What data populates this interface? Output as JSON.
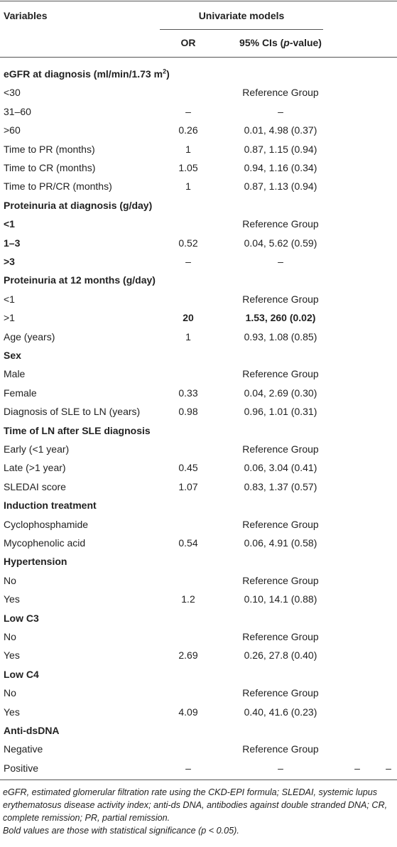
{
  "table": {
    "header": {
      "variables": "Variables",
      "group": "Univariate models",
      "or": "OR",
      "ci": [
        "95% CIs (",
        "p",
        "-value)"
      ]
    },
    "rows": [
      {
        "label": "eGFR at diagnosis (ml/min/1.73 m",
        "label_sup": "2",
        "label_end": ")",
        "bold": "all"
      },
      {
        "label": "<30",
        "ci": "Reference Group"
      },
      {
        "label": "31–60",
        "or": "–",
        "ci": "–"
      },
      {
        "label": ">60",
        "or": "0.26",
        "ci": "0.01, 4.98 (0.37)"
      },
      {
        "label": "Time to PR (months)",
        "or": "1",
        "ci": "0.87, 1.15 (0.94)"
      },
      {
        "label": "Time to CR (months)",
        "or": "1.05",
        "ci": "0.94, 1.16 (0.34)"
      },
      {
        "label": "Time to PR/CR (months)",
        "or": "1",
        "ci": "0.87, 1.13 (0.94)"
      },
      {
        "label": "Proteinuria at diagnosis (g/day)",
        "bold": "all"
      },
      {
        "label": "<1",
        "ci": "Reference Group",
        "bold": "label"
      },
      {
        "label": "1–3",
        "or": "0.52",
        "ci": "0.04, 5.62 (0.59)",
        "bold": "label"
      },
      {
        "label": ">3",
        "or": "–",
        "ci": "–",
        "bold": "label"
      },
      {
        "label": "Proteinuria at 12 months (g/day)",
        "bold": "all"
      },
      {
        "label": "<1",
        "ci": "Reference Group"
      },
      {
        "label": ">1",
        "or": "20",
        "ci": "1.53, 260 (0.02)",
        "bold": "values"
      },
      {
        "label": "Age (years)",
        "or": "1",
        "ci": "0.93, 1.08 (0.85)"
      },
      {
        "label": "Sex",
        "bold": "all"
      },
      {
        "label": "Male",
        "ci": "Reference Group"
      },
      {
        "label": "Female",
        "or": "0.33",
        "ci": "0.04, 2.69 (0.30)"
      },
      {
        "label": "Diagnosis of SLE to LN (years)",
        "or": "0.98",
        "ci": "0.96, 1.01 (0.31)"
      },
      {
        "label": "Time of LN after SLE diagnosis",
        "bold": "all"
      },
      {
        "label": "Early (<1 year)",
        "ci": "Reference Group"
      },
      {
        "label": "Late (>1 year)",
        "or": "0.45",
        "ci": "0.06, 3.04 (0.41)"
      },
      {
        "label": "SLEDAI score",
        "or": "1.07",
        "ci": "0.83, 1.37 (0.57)"
      },
      {
        "label": "Induction treatment",
        "bold": "all"
      },
      {
        "label": "Cyclophosphamide",
        "ci": "Reference Group"
      },
      {
        "label": "Mycophenolic acid",
        "or": "0.54",
        "ci": "0.06, 4.91 (0.58)"
      },
      {
        "label": "Hypertension",
        "bold": "all"
      },
      {
        "label": "No",
        "ci": "Reference Group"
      },
      {
        "label": "Yes",
        "or": "1.2",
        "ci": "0.10, 14.1 (0.88)"
      },
      {
        "label": "Low C3",
        "bold": "all"
      },
      {
        "label": "No",
        "ci": "Reference Group"
      },
      {
        "label": "Yes",
        "or": "2.69",
        "ci": "0.26, 27.8 (0.40)"
      },
      {
        "label": "Low C4",
        "bold": "all"
      },
      {
        "label": "No",
        "ci": "Reference Group"
      },
      {
        "label": "Yes",
        "or": "4.09",
        "ci": "0.40, 41.6 (0.23)"
      },
      {
        "label": "Anti-dsDNA",
        "bold": "all"
      },
      {
        "label": "Negative",
        "ci": "Reference Group"
      },
      {
        "label": "Positive",
        "or": "–",
        "ci": "–",
        "extra": [
          "–",
          "–"
        ]
      }
    ]
  },
  "footnotes": [
    "eGFR, estimated glomerular filtration rate using the CKD-EPI formula; SLEDAI, systemic lupus erythematosus disease activity index; anti-ds DNA, antibodies against double stranded DNA; CR, complete remission; PR, partial remission.",
    "Bold values are those with statistical significance (p < 0.05)."
  ]
}
